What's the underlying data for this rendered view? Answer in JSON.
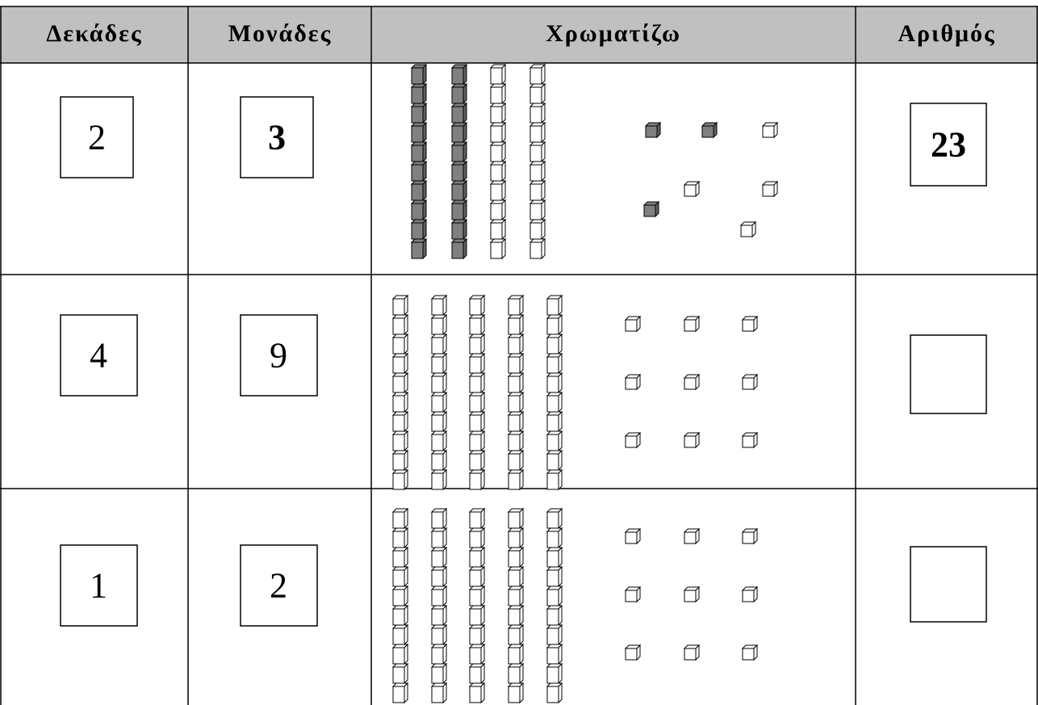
{
  "table": {
    "header": [
      "Δεκάδες",
      "Μονάδες",
      "Χρωματίζω",
      "Αριθμός"
    ],
    "rows": [
      {
        "tens": "2",
        "units": "3",
        "number": "23"
      },
      {
        "tens": "4",
        "units": "9"
      },
      {
        "tens": "1",
        "units": "2"
      }
    ]
  }
}
